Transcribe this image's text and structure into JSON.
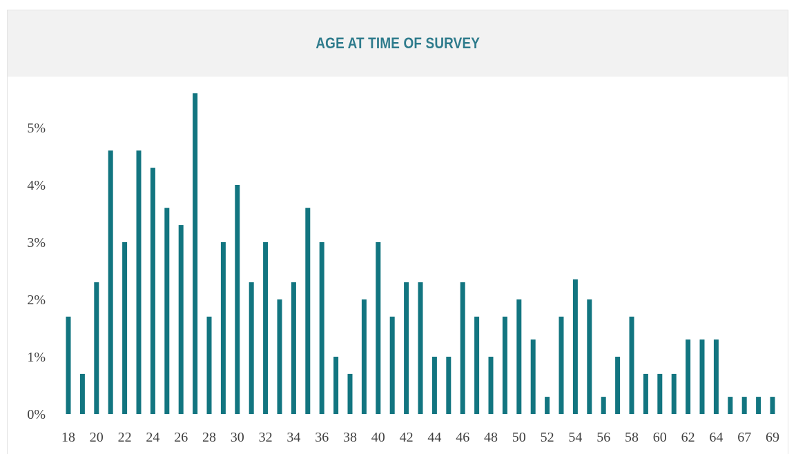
{
  "colors": {
    "bar": "#127580",
    "title": "#2e7b8c",
    "header_bg": "#f2f2f2",
    "tick_text": "#404040"
  },
  "chart_data": {
    "type": "bar",
    "title": "AGE AT TIME OF SURVEY",
    "xlabel": "",
    "ylabel": "",
    "ylim": [
      0,
      5.6
    ],
    "y_ticks": [
      "0%",
      "1%",
      "2%",
      "3%",
      "4%",
      "5%"
    ],
    "y_tick_values": [
      0,
      1,
      2,
      3,
      4,
      5
    ],
    "grid": false,
    "categories": [
      "18",
      "19",
      "20",
      "21",
      "22",
      "23",
      "24",
      "25",
      "26",
      "27",
      "28",
      "29",
      "30",
      "31",
      "32",
      "33",
      "34",
      "35",
      "36",
      "37",
      "38",
      "39",
      "40",
      "41",
      "42",
      "43",
      "44",
      "45",
      "46",
      "47",
      "48",
      "49",
      "50",
      "51",
      "52",
      "53",
      "54",
      "55",
      "56",
      "57",
      "58",
      "59",
      "60",
      "61",
      "62",
      "63",
      "64",
      "65",
      "67",
      "68",
      "69"
    ],
    "x_tick_labels": [
      "18",
      "20",
      "22",
      "24",
      "26",
      "28",
      "30",
      "32",
      "34",
      "36",
      "38",
      "40",
      "42",
      "44",
      "46",
      "48",
      "50",
      "52",
      "54",
      "56",
      "58",
      "60",
      "62",
      "64",
      "67",
      "69"
    ],
    "values": [
      1.7,
      0.7,
      2.3,
      4.6,
      3.0,
      4.6,
      4.3,
      3.6,
      3.3,
      5.6,
      1.7,
      3.0,
      4.0,
      2.3,
      3.0,
      2.0,
      2.3,
      3.6,
      3.0,
      1.0,
      0.7,
      2.0,
      3.0,
      1.7,
      2.3,
      2.3,
      1.0,
      1.0,
      2.3,
      1.7,
      1.0,
      1.7,
      2.0,
      1.3,
      0.3,
      1.7,
      2.35,
      2.0,
      0.3,
      1.0,
      1.7,
      0.7,
      0.7,
      0.7,
      1.3,
      1.3,
      1.3,
      0.3,
      0.3,
      0.3,
      0.3
    ],
    "unit": "%"
  }
}
